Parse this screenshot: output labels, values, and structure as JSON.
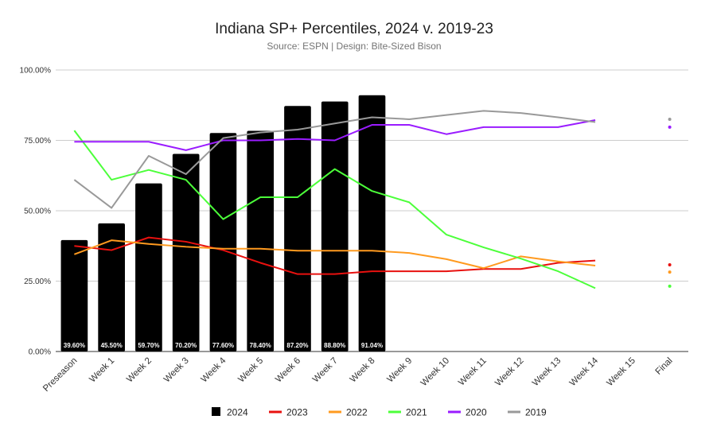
{
  "chart_data": {
    "type": "bar+line",
    "title": "Indiana SP+ Percentiles, 2024 v. 2019-23",
    "subtitle": "Source: ESPN | Design: Bite-Sized Bison",
    "categories": [
      "Preseason",
      "Week 1",
      "Week 2",
      "Week 3",
      "Week 4",
      "Week 5",
      "Week 6",
      "Week 7",
      "Week 8",
      "Week 9",
      "Week 10",
      "Week 11",
      "Week 12",
      "Week 13",
      "Week 14",
      "Week 15",
      "Final"
    ],
    "ylim": [
      0,
      100
    ],
    "yticks": [
      0,
      25,
      50,
      75,
      100
    ],
    "ytick_labels": [
      "0.00%",
      "25.00%",
      "50.00%",
      "75.00%",
      "100.00%"
    ],
    "bar_series": {
      "name": "2024",
      "color": "#000000",
      "values": [
        39.6,
        45.5,
        59.7,
        70.2,
        77.6,
        78.4,
        87.2,
        88.8,
        91.04
      ],
      "labels": [
        "39.60%",
        "45.50%",
        "59.70%",
        "70.20%",
        "77.60%",
        "78.40%",
        "87.20%",
        "88.80%",
        "91.04%"
      ]
    },
    "line_series": [
      {
        "name": "2023",
        "color": "#e8110f",
        "values": [
          37.5,
          36,
          40.5,
          39,
          36,
          31.5,
          27.5,
          27.5,
          28.5,
          28.5,
          28.5,
          29.3,
          29.3,
          31.5,
          32.3
        ],
        "final": 30.8
      },
      {
        "name": "2022",
        "color": "#ff9a1f",
        "values": [
          34.5,
          39.5,
          38.2,
          37.2,
          36.5,
          36.5,
          35.8,
          35.8,
          35.8,
          35,
          32.8,
          29.6,
          33.8,
          32,
          30.5
        ],
        "final": 28.2
      },
      {
        "name": "2021",
        "color": "#4cff3a",
        "values": [
          78.5,
          61,
          64.5,
          61,
          47,
          54.8,
          54.8,
          64.8,
          57,
          53,
          41.5,
          37,
          33,
          28.5,
          22.5
        ],
        "final": 23.2
      },
      {
        "name": "2020",
        "color": "#9a1cff",
        "values": [
          74.5,
          74.5,
          74.5,
          71.5,
          75,
          75,
          75.5,
          75,
          80.5,
          80.5,
          77.2,
          79.7,
          79.7,
          79.7,
          82.2
        ],
        "final": 79.7
      },
      {
        "name": "2019",
        "color": "#999999",
        "values": [
          61,
          51,
          69.5,
          63,
          75.8,
          77.8,
          78.8,
          81,
          83.2,
          82.5,
          84,
          85.5,
          84.7,
          83.2,
          81.5
        ],
        "final": 82.5
      }
    ],
    "legend": {
      "position": "bottom",
      "entries": [
        {
          "name": "2024",
          "color": "#000000",
          "marker": "square"
        },
        {
          "name": "2023",
          "color": "#e8110f",
          "marker": "line"
        },
        {
          "name": "2022",
          "color": "#ff9a1f",
          "marker": "line"
        },
        {
          "name": "2021",
          "color": "#4cff3a",
          "marker": "line"
        },
        {
          "name": "2020",
          "color": "#9a1cff",
          "marker": "line"
        },
        {
          "name": "2019",
          "color": "#999999",
          "marker": "line"
        }
      ]
    },
    "grid": true,
    "xlabel": "",
    "ylabel": ""
  }
}
